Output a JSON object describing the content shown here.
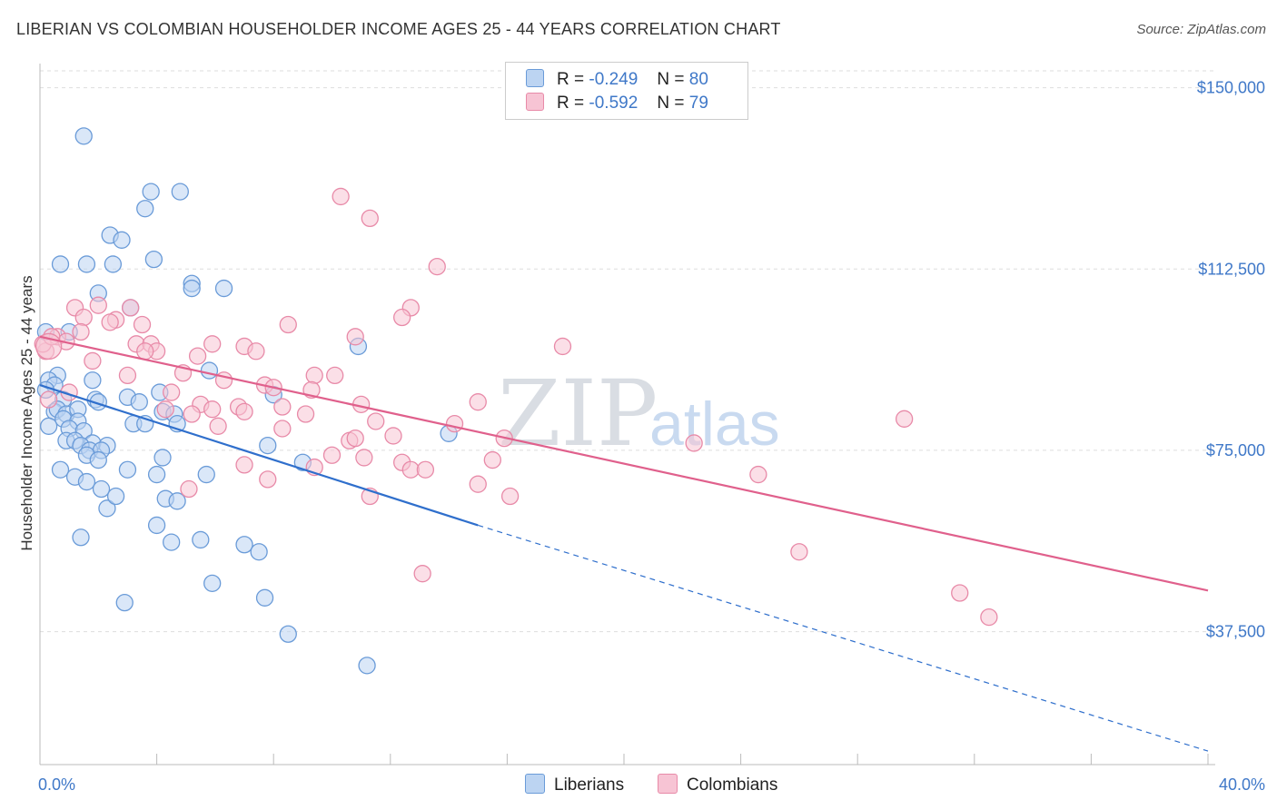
{
  "header": {
    "title": "LIBERIAN VS COLOMBIAN HOUSEHOLDER INCOME AGES 25 - 44 YEARS CORRELATION CHART",
    "source": "Source: ZipAtlas.com"
  },
  "watermark": {
    "zip": "ZIP",
    "atlas": "atlas"
  },
  "legend": {
    "rows": [
      {
        "r_label": "R =",
        "r_value": "-0.249",
        "n_label": "N =",
        "n_value": "80"
      },
      {
        "r_label": "R =",
        "r_value": "-0.592",
        "n_label": "N =",
        "n_value": "79"
      }
    ]
  },
  "bottom_legend": {
    "liberians": "Liberians",
    "colombians": "Colombians"
  },
  "colors": {
    "blue_fill": "#bcd4f2",
    "blue_stroke": "#6a9bd8",
    "blue_line": "#2f6fcc",
    "pink_fill": "#f7c4d4",
    "pink_stroke": "#e88aa8",
    "pink_line": "#e0608c",
    "axis_label": "#3f78c8",
    "grid": "#dddddd"
  },
  "chart_data": {
    "type": "scatter",
    "title": "LIBERIAN VS COLOMBIAN HOUSEHOLDER INCOME AGES 25 - 44 YEARS CORRELATION CHART",
    "xlabel": "",
    "ylabel": "Householder Income Ages 25 - 44 years",
    "xlim": [
      0,
      40
    ],
    "ylim": [
      10000,
      155000
    ],
    "x_ticks": [
      "0.0%",
      "40.0%"
    ],
    "y_ticks": [
      {
        "value": 37500,
        "label": "$37,500"
      },
      {
        "value": 75000,
        "label": "$75,000"
      },
      {
        "value": 112500,
        "label": "$112,500"
      },
      {
        "value": 150000,
        "label": "$150,000"
      }
    ],
    "grid": true,
    "legend_position": "top-center",
    "series": [
      {
        "name": "Liberians",
        "color": "#6a9bd8",
        "trend": {
          "x": [
            0,
            15
          ],
          "y": [
            88500,
            59500
          ],
          "dashed_to": [
            40,
            12800
          ]
        },
        "points": [
          [
            1.5,
            140000
          ],
          [
            3.8,
            128500
          ],
          [
            4.8,
            128500
          ],
          [
            3.6,
            125000
          ],
          [
            2.4,
            119500
          ],
          [
            2.8,
            118500
          ],
          [
            0.7,
            113500
          ],
          [
            1.6,
            113500
          ],
          [
            2.5,
            113500
          ],
          [
            3.9,
            114500
          ],
          [
            5.2,
            109500
          ],
          [
            5.2,
            108500
          ],
          [
            6.3,
            108500
          ],
          [
            2.0,
            107500
          ],
          [
            3.1,
            104500
          ],
          [
            0.2,
            99500
          ],
          [
            1.0,
            99500
          ],
          [
            10.9,
            96500
          ],
          [
            5.8,
            91500
          ],
          [
            0.6,
            90500
          ],
          [
            0.3,
            89500
          ],
          [
            0.5,
            88500
          ],
          [
            1.8,
            89500
          ],
          [
            0.2,
            87500
          ],
          [
            4.1,
            87000
          ],
          [
            8.0,
            86500
          ],
          [
            0.8,
            85500
          ],
          [
            1.9,
            85500
          ],
          [
            2.0,
            85000
          ],
          [
            3.0,
            86000
          ],
          [
            3.4,
            85000
          ],
          [
            0.5,
            83000
          ],
          [
            0.6,
            83500
          ],
          [
            0.9,
            82500
          ],
          [
            1.3,
            83500
          ],
          [
            4.2,
            83000
          ],
          [
            4.6,
            82500
          ],
          [
            0.8,
            81500
          ],
          [
            1.3,
            81000
          ],
          [
            3.2,
            80500
          ],
          [
            3.6,
            80500
          ],
          [
            4.7,
            80500
          ],
          [
            0.3,
            80000
          ],
          [
            1.0,
            79500
          ],
          [
            1.5,
            79000
          ],
          [
            14.0,
            78500
          ],
          [
            0.9,
            77000
          ],
          [
            1.2,
            77000
          ],
          [
            1.8,
            76500
          ],
          [
            2.3,
            76000
          ],
          [
            1.4,
            76000
          ],
          [
            1.7,
            75000
          ],
          [
            7.8,
            76000
          ],
          [
            2.1,
            75000
          ],
          [
            1.6,
            74000
          ],
          [
            4.2,
            73500
          ],
          [
            2.0,
            73000
          ],
          [
            9.0,
            72500
          ],
          [
            0.7,
            71000
          ],
          [
            3.0,
            71000
          ],
          [
            4.0,
            70000
          ],
          [
            5.7,
            70000
          ],
          [
            1.2,
            69500
          ],
          [
            1.6,
            68500
          ],
          [
            2.1,
            67000
          ],
          [
            4.3,
            65000
          ],
          [
            4.7,
            64500
          ],
          [
            2.3,
            63000
          ],
          [
            2.6,
            65500
          ],
          [
            4.0,
            59500
          ],
          [
            1.4,
            57000
          ],
          [
            5.5,
            56500
          ],
          [
            4.5,
            56000
          ],
          [
            7.0,
            55500
          ],
          [
            7.5,
            54000
          ],
          [
            5.9,
            47500
          ],
          [
            7.7,
            44500
          ],
          [
            2.9,
            43500
          ],
          [
            8.5,
            37000
          ],
          [
            11.2,
            30500
          ]
        ]
      },
      {
        "name": "Colombians",
        "color": "#e88aa8",
        "trend": {
          "x": [
            0,
            40
          ],
          "y": [
            98500,
            46000
          ]
        },
        "points": [
          [
            10.3,
            127500
          ],
          [
            11.3,
            123000
          ],
          [
            13.6,
            113000
          ],
          [
            12.7,
            104500
          ],
          [
            12.4,
            102500
          ],
          [
            2.0,
            105000
          ],
          [
            1.2,
            104500
          ],
          [
            3.1,
            104500
          ],
          [
            1.5,
            102500
          ],
          [
            2.6,
            102000
          ],
          [
            2.4,
            101500
          ],
          [
            3.5,
            101000
          ],
          [
            8.5,
            101000
          ],
          [
            0.6,
            98500
          ],
          [
            0.9,
            97500
          ],
          [
            1.4,
            99500
          ],
          [
            3.3,
            97000
          ],
          [
            3.8,
            97000
          ],
          [
            5.9,
            97000
          ],
          [
            7.0,
            96500
          ],
          [
            10.8,
            98500
          ],
          [
            17.9,
            96500
          ],
          [
            4.0,
            95500
          ],
          [
            0.2,
            95500
          ],
          [
            7.4,
            95500
          ],
          [
            5.4,
            94500
          ],
          [
            1.8,
            93500
          ],
          [
            4.9,
            91000
          ],
          [
            9.4,
            90500
          ],
          [
            10.1,
            90500
          ],
          [
            3.0,
            90500
          ],
          [
            6.3,
            89500
          ],
          [
            7.7,
            88500
          ],
          [
            8.0,
            88000
          ],
          [
            9.3,
            87500
          ],
          [
            4.5,
            87000
          ],
          [
            1.0,
            87000
          ],
          [
            5.5,
            84500
          ],
          [
            6.8,
            84000
          ],
          [
            8.3,
            84000
          ],
          [
            11.0,
            84500
          ],
          [
            15.0,
            85000
          ],
          [
            4.3,
            83500
          ],
          [
            5.9,
            83500
          ],
          [
            7.0,
            83000
          ],
          [
            5.2,
            82500
          ],
          [
            9.1,
            82500
          ],
          [
            11.5,
            81000
          ],
          [
            14.2,
            80500
          ],
          [
            29.6,
            81500
          ],
          [
            6.1,
            80000
          ],
          [
            8.3,
            79500
          ],
          [
            12.1,
            78000
          ],
          [
            10.6,
            77000
          ],
          [
            10.8,
            77500
          ],
          [
            15.9,
            77500
          ],
          [
            22.4,
            76500
          ],
          [
            10.0,
            74000
          ],
          [
            11.1,
            73500
          ],
          [
            12.4,
            72500
          ],
          [
            15.5,
            73000
          ],
          [
            7.0,
            72000
          ],
          [
            9.4,
            71500
          ],
          [
            12.7,
            71000
          ],
          [
            13.2,
            71000
          ],
          [
            24.6,
            70000
          ],
          [
            7.8,
            69000
          ],
          [
            15.0,
            68000
          ],
          [
            5.1,
            67000
          ],
          [
            11.3,
            65500
          ],
          [
            16.1,
            65500
          ],
          [
            26.0,
            54000
          ],
          [
            13.1,
            49500
          ],
          [
            31.5,
            45500
          ],
          [
            32.5,
            40500
          ],
          [
            0.1,
            97000
          ],
          [
            0.4,
            98500
          ],
          [
            0.3,
            85500
          ],
          [
            3.6,
            95500
          ]
        ]
      }
    ]
  }
}
